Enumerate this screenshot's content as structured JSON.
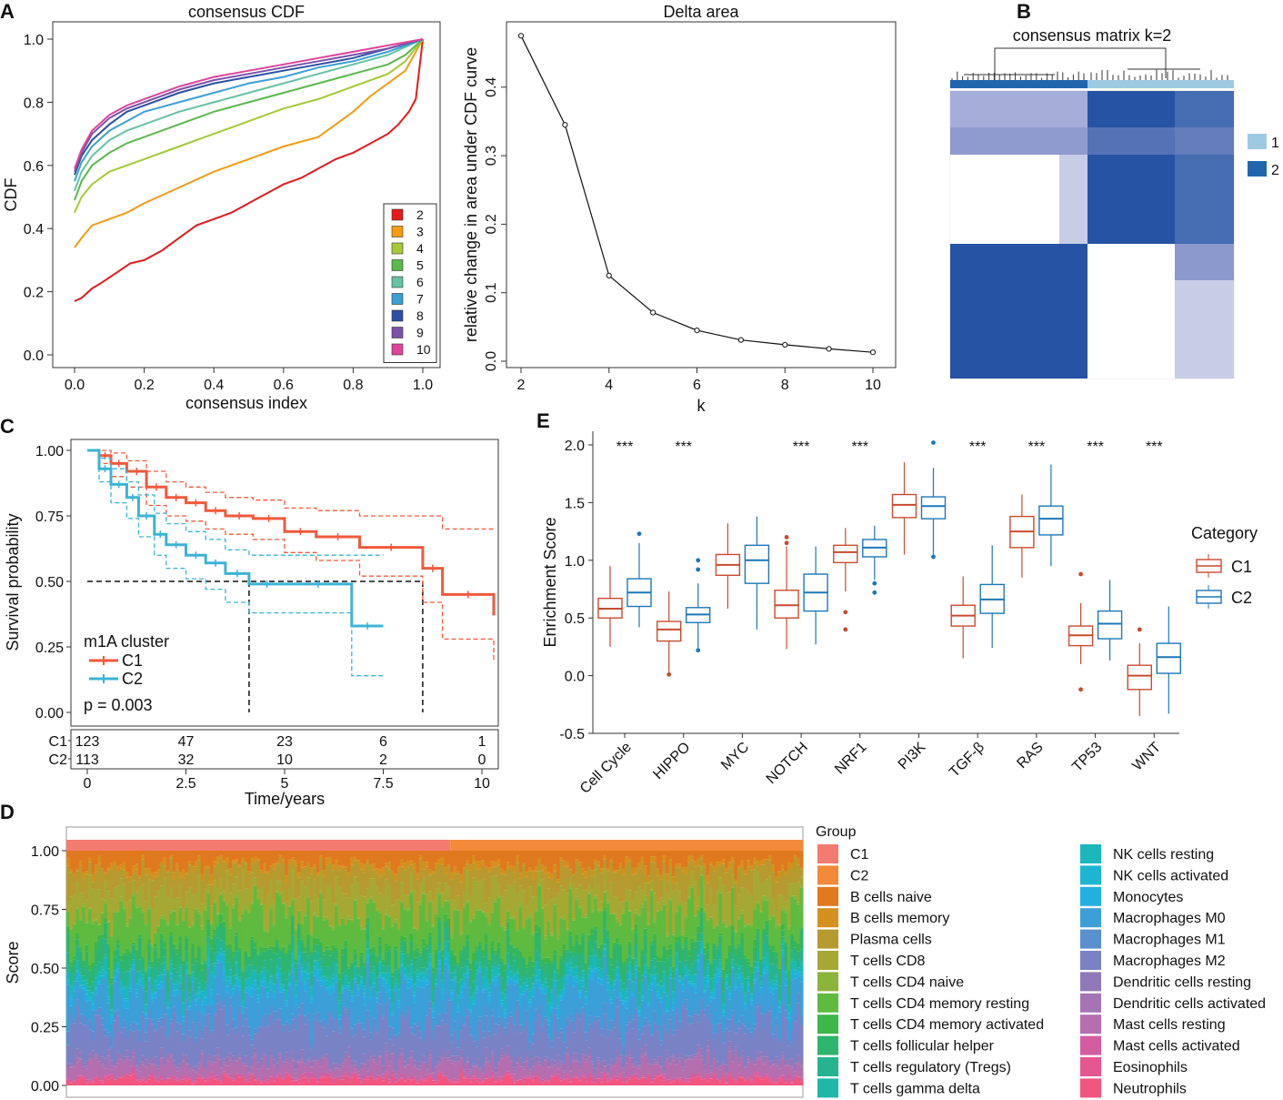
{
  "colors": {
    "cdf": [
      "#e41a1c",
      "#f39c12",
      "#a6c935",
      "#5ab94c",
      "#66c2a5",
      "#3ba0d6",
      "#2c4fa3",
      "#7a52a8",
      "#e0449a"
    ],
    "c1_km": "#f05a3c",
    "c2_km": "#3bb4d4",
    "c1_box": "#c94a30",
    "c2_box": "#1c78b8",
    "cluster1": "#9ecae1",
    "cluster2": "#2166ac",
    "matrix_dark": "#2653a3",
    "matrix_mid": "#7d8cc7",
    "matrix_light": "#c7cce7",
    "bar_c1": "#f37b6f",
    "bar_c2": "#f28a3a"
  },
  "chart_data": [
    {
      "id": "A1",
      "panel": "A",
      "type": "line",
      "title": "consensus CDF",
      "xlabel": "consensus index",
      "ylabel": "CDF",
      "xlim": [
        0,
        1
      ],
      "ylim": [
        0,
        1
      ],
      "xticks": [
        "0.0",
        "0.2",
        "0.4",
        "0.6",
        "0.8",
        "1.0"
      ],
      "yticks": [
        "0.0",
        "0.2",
        "0.4",
        "0.6",
        "0.8",
        "1.0"
      ],
      "legend": [
        "2",
        "3",
        "4",
        "5",
        "6",
        "7",
        "8",
        "9",
        "10"
      ],
      "series": [
        {
          "name": "2",
          "x": [
            0,
            0.02,
            0.05,
            0.08,
            0.12,
            0.16,
            0.2,
            0.25,
            0.3,
            0.35,
            0.4,
            0.45,
            0.5,
            0.55,
            0.6,
            0.65,
            0.7,
            0.75,
            0.8,
            0.85,
            0.9,
            0.93,
            0.96,
            0.98,
            1.0
          ],
          "y": [
            0.17,
            0.18,
            0.21,
            0.23,
            0.26,
            0.29,
            0.3,
            0.33,
            0.37,
            0.41,
            0.43,
            0.45,
            0.48,
            0.51,
            0.54,
            0.56,
            0.59,
            0.62,
            0.64,
            0.67,
            0.7,
            0.73,
            0.77,
            0.81,
            1.0
          ]
        },
        {
          "name": "3",
          "x": [
            0,
            0.02,
            0.05,
            0.1,
            0.15,
            0.2,
            0.3,
            0.4,
            0.5,
            0.6,
            0.7,
            0.75,
            0.8,
            0.85,
            0.9,
            0.95,
            1.0
          ],
          "y": [
            0.34,
            0.37,
            0.41,
            0.43,
            0.45,
            0.48,
            0.53,
            0.58,
            0.62,
            0.66,
            0.69,
            0.73,
            0.77,
            0.82,
            0.86,
            0.9,
            1.0
          ]
        },
        {
          "name": "4",
          "x": [
            0,
            0.02,
            0.05,
            0.1,
            0.15,
            0.2,
            0.3,
            0.4,
            0.5,
            0.6,
            0.7,
            0.8,
            0.9,
            0.95,
            1.0
          ],
          "y": [
            0.45,
            0.5,
            0.54,
            0.58,
            0.6,
            0.62,
            0.66,
            0.7,
            0.74,
            0.78,
            0.81,
            0.85,
            0.89,
            0.93,
            1.0
          ]
        },
        {
          "name": "5",
          "x": [
            0,
            0.02,
            0.05,
            0.1,
            0.15,
            0.2,
            0.3,
            0.4,
            0.5,
            0.6,
            0.7,
            0.8,
            0.9,
            0.95,
            1.0
          ],
          "y": [
            0.49,
            0.55,
            0.6,
            0.64,
            0.67,
            0.69,
            0.73,
            0.77,
            0.8,
            0.83,
            0.86,
            0.89,
            0.92,
            0.95,
            1.0
          ]
        },
        {
          "name": "6",
          "x": [
            0,
            0.02,
            0.05,
            0.1,
            0.15,
            0.2,
            0.3,
            0.4,
            0.5,
            0.6,
            0.7,
            0.8,
            0.9,
            1.0
          ],
          "y": [
            0.52,
            0.58,
            0.63,
            0.68,
            0.71,
            0.73,
            0.77,
            0.8,
            0.83,
            0.86,
            0.89,
            0.92,
            0.95,
            1.0
          ]
        },
        {
          "name": "7",
          "x": [
            0,
            0.02,
            0.05,
            0.1,
            0.15,
            0.2,
            0.3,
            0.4,
            0.5,
            0.6,
            0.7,
            0.8,
            0.9,
            1.0
          ],
          "y": [
            0.55,
            0.61,
            0.66,
            0.71,
            0.74,
            0.77,
            0.8,
            0.83,
            0.86,
            0.88,
            0.91,
            0.93,
            0.96,
            1.0
          ]
        },
        {
          "name": "8",
          "x": [
            0,
            0.02,
            0.05,
            0.1,
            0.15,
            0.2,
            0.3,
            0.4,
            0.5,
            0.6,
            0.7,
            0.8,
            0.9,
            1.0
          ],
          "y": [
            0.57,
            0.63,
            0.68,
            0.73,
            0.77,
            0.79,
            0.83,
            0.86,
            0.88,
            0.9,
            0.92,
            0.94,
            0.97,
            1.0
          ]
        },
        {
          "name": "9",
          "x": [
            0,
            0.02,
            0.05,
            0.1,
            0.15,
            0.2,
            0.3,
            0.4,
            0.5,
            0.6,
            0.7,
            0.8,
            0.9,
            1.0
          ],
          "y": [
            0.58,
            0.64,
            0.7,
            0.75,
            0.78,
            0.8,
            0.84,
            0.87,
            0.89,
            0.91,
            0.93,
            0.95,
            0.97,
            1.0
          ]
        },
        {
          "name": "10",
          "x": [
            0,
            0.02,
            0.05,
            0.1,
            0.15,
            0.2,
            0.3,
            0.4,
            0.5,
            0.6,
            0.7,
            0.8,
            0.9,
            1.0
          ],
          "y": [
            0.59,
            0.65,
            0.71,
            0.76,
            0.79,
            0.81,
            0.85,
            0.88,
            0.9,
            0.92,
            0.94,
            0.96,
            0.98,
            1.0
          ]
        }
      ]
    },
    {
      "id": "A2",
      "panel": "A",
      "type": "line",
      "title": "Delta area",
      "xlabel": "k",
      "ylabel": "relative change in area under CDF curve",
      "xlim": [
        2,
        10
      ],
      "ylim": [
        0,
        0.48
      ],
      "xticks": [
        "2",
        "4",
        "6",
        "8",
        "10"
      ],
      "yticks": [
        "0.0",
        "0.1",
        "0.2",
        "0.3",
        "0.4"
      ],
      "x": [
        2,
        3,
        4,
        5,
        6,
        7,
        8,
        9,
        10
      ],
      "y": [
        0.475,
        0.345,
        0.125,
        0.071,
        0.045,
        0.031,
        0.024,
        0.018,
        0.013
      ]
    },
    {
      "id": "B",
      "panel": "B",
      "type": "heatmap",
      "title": "consensus matrix k=2",
      "legend": [
        "1",
        "2"
      ]
    },
    {
      "id": "C",
      "panel": "C",
      "type": "line",
      "xlabel": "Time/years",
      "ylabel": "Survival probability",
      "xlim": [
        0,
        10.3
      ],
      "ylim": [
        0,
        1.04
      ],
      "xticks": [
        "0",
        "2.5",
        "5",
        "7.5",
        "10"
      ],
      "yticks": [
        "0.00",
        "0.25",
        "0.50",
        "0.75",
        "1.00"
      ],
      "legend_title": "m1A cluster",
      "pvalue": "p = 0.003",
      "median_survival": {
        "C1": 8.5,
        "C2": 4.1
      },
      "series": [
        {
          "name": "C1",
          "x": [
            0,
            0.3,
            0.6,
            1.0,
            1.5,
            2.0,
            2.5,
            3.0,
            3.5,
            4.2,
            5.0,
            5.8,
            6.9,
            8.5,
            9.0,
            10.3
          ],
          "y": [
            1.0,
            0.98,
            0.95,
            0.92,
            0.86,
            0.82,
            0.8,
            0.77,
            0.75,
            0.74,
            0.69,
            0.67,
            0.63,
            0.55,
            0.45,
            0.37
          ],
          "upper": [
            1.0,
            1.0,
            0.99,
            0.96,
            0.92,
            0.88,
            0.86,
            0.84,
            0.82,
            0.81,
            0.78,
            0.77,
            0.75,
            0.75,
            0.7,
            0.7
          ],
          "lower": [
            1.0,
            0.95,
            0.9,
            0.86,
            0.79,
            0.75,
            0.73,
            0.7,
            0.68,
            0.66,
            0.61,
            0.58,
            0.52,
            0.42,
            0.28,
            0.19
          ]
        },
        {
          "name": "C2",
          "x": [
            0,
            0.3,
            0.6,
            1.0,
            1.3,
            1.7,
            2.0,
            2.5,
            3.0,
            3.5,
            4.1,
            5.0,
            6.7,
            7.5
          ],
          "y": [
            1.0,
            0.93,
            0.87,
            0.82,
            0.75,
            0.68,
            0.64,
            0.6,
            0.57,
            0.53,
            0.49,
            0.49,
            0.33,
            0.33
          ],
          "upper": [
            1.0,
            0.97,
            0.93,
            0.88,
            0.83,
            0.76,
            0.72,
            0.69,
            0.66,
            0.62,
            0.6,
            0.6,
            0.6,
            0.6
          ],
          "lower": [
            1.0,
            0.88,
            0.8,
            0.74,
            0.67,
            0.6,
            0.55,
            0.51,
            0.47,
            0.42,
            0.38,
            0.38,
            0.14,
            0.14
          ]
        }
      ],
      "risk_table": {
        "labels": [
          "C1",
          "C2"
        ],
        "times": [
          0,
          2.5,
          5,
          7.5,
          10
        ],
        "C1": [
          "123",
          "47",
          "23",
          "6",
          "1"
        ],
        "C2": [
          "113",
          "32",
          "10",
          "2",
          "0"
        ]
      }
    },
    {
      "id": "E",
      "panel": "E",
      "type": "bar",
      "subtype": "boxplot",
      "ylabel": "Enrichment Score",
      "ylim": [
        -0.5,
        2.1
      ],
      "yticks": [
        "-0.5",
        "0.0",
        "0.5",
        "1.0",
        "1.5",
        "2.0"
      ],
      "legend_title": "Category",
      "categories": [
        "Cell Cycle",
        "HIPPO",
        "MYC",
        "NOTCH",
        "NRF1",
        "PI3K",
        "TGF-β",
        "RAS",
        "TP53",
        "WNT"
      ],
      "significance": [
        "***",
        "***",
        "",
        "***",
        "***",
        "",
        "***",
        "***",
        "***",
        "***"
      ],
      "series": [
        {
          "name": "C1",
          "min": [
            0.25,
            0.03,
            0.58,
            0.23,
            0.73,
            1.05,
            0.15,
            0.85,
            0.1,
            -0.35
          ],
          "q1": [
            0.5,
            0.3,
            0.87,
            0.5,
            0.98,
            1.37,
            0.43,
            1.11,
            0.26,
            -0.12
          ],
          "median": [
            0.58,
            0.4,
            0.96,
            0.61,
            1.07,
            1.48,
            0.52,
            1.25,
            0.35,
            0.0
          ],
          "q3": [
            0.67,
            0.47,
            1.05,
            0.74,
            1.13,
            1.57,
            0.61,
            1.38,
            0.43,
            0.09
          ],
          "max": [
            0.95,
            0.73,
            1.32,
            1.12,
            1.28,
            1.85,
            0.86,
            1.57,
            0.63,
            0.28
          ],
          "outliers": [
            [],
            [
              0.01
            ],
            [],
            [
              1.15,
              1.2
            ],
            [
              0.4,
              0.55
            ],
            [],
            [],
            [],
            [
              0.88,
              -0.12
            ],
            [
              0.4
            ]
          ]
        },
        {
          "name": "C2",
          "min": [
            0.42,
            0.24,
            0.4,
            0.27,
            0.83,
            1.05,
            0.24,
            0.95,
            0.13,
            -0.33
          ],
          "q1": [
            0.6,
            0.46,
            0.8,
            0.56,
            1.03,
            1.36,
            0.54,
            1.22,
            0.32,
            0.02
          ],
          "median": [
            0.72,
            0.53,
            1.0,
            0.72,
            1.11,
            1.47,
            0.66,
            1.36,
            0.45,
            0.16
          ],
          "q3": [
            0.84,
            0.59,
            1.13,
            0.88,
            1.18,
            1.55,
            0.79,
            1.47,
            0.56,
            0.28
          ],
          "max": [
            1.15,
            0.8,
            1.38,
            1.12,
            1.3,
            1.8,
            1.13,
            1.83,
            0.83,
            0.6
          ],
          "outliers": [
            [
              1.23
            ],
            [
              0.92,
              1.0,
              0.22
            ],
            [],
            [],
            [
              0.72,
              0.8
            ],
            [
              2.02,
              1.03
            ],
            [],
            [],
            [],
            []
          ]
        }
      ]
    },
    {
      "id": "D",
      "panel": "D",
      "type": "bar",
      "subtype": "stacked",
      "ylabel": "Score",
      "ylim": [
        0,
        1
      ],
      "yticks": [
        "0.00",
        "0.25",
        "0.50",
        "0.75",
        "1.00"
      ],
      "group_title": "Group",
      "groups": [
        "C1",
        "C2"
      ],
      "n_samples": 236,
      "cell_types": [
        "B cells naive",
        "B cells memory",
        "Plasma cells",
        "T cells CD8",
        "T cells CD4 naive",
        "T cells CD4 memory resting",
        "T cells CD4 memory activated",
        "T cells follicular helper",
        "T cells regulatory (Tregs)",
        "T cells gamma delta",
        "NK cells resting",
        "NK cells activated",
        "Monocytes",
        "Macrophages M0",
        "Macrophages M1",
        "Macrophages M2",
        "Dendritic cells resting",
        "Dendritic cells activated",
        "Mast cells resting",
        "Mast cells activated",
        "Eosinophils",
        "Neutrophils"
      ],
      "mean_fractions": [
        0.06,
        0.02,
        0.08,
        0.1,
        0.01,
        0.14,
        0.02,
        0.06,
        0.04,
        0.01,
        0.03,
        0.01,
        0.02,
        0.12,
        0.03,
        0.13,
        0.02,
        0.01,
        0.05,
        0.01,
        0.005,
        0.025
      ],
      "colors": [
        "#e0781e",
        "#d4901e",
        "#b79a2e",
        "#a5a832",
        "#8bb43a",
        "#5fbb3f",
        "#3db64a",
        "#2fb46e",
        "#26b48e",
        "#1fb7a8",
        "#1bb7bb",
        "#1eb5d3",
        "#23afe0",
        "#3c9fd8",
        "#5a8fd0",
        "#7a82c6",
        "#9079ba",
        "#a574b4",
        "#b56eae",
        "#d45d9f",
        "#e65790",
        "#f2557e"
      ]
    }
  ]
}
